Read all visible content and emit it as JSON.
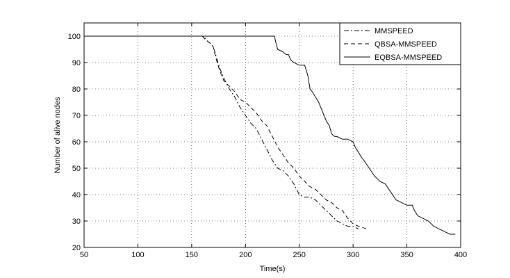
{
  "chart_data": {
    "type": "line",
    "title": "",
    "xlabel": "Time(s)",
    "ylabel": "Number of alive nodes",
    "xlim": [
      50,
      400
    ],
    "ylim": [
      20,
      105
    ],
    "xticks": [
      50,
      100,
      150,
      200,
      250,
      300,
      350,
      400
    ],
    "yticks": [
      20,
      30,
      40,
      50,
      60,
      70,
      80,
      90,
      100
    ],
    "grid": true,
    "legend_position": "top-right",
    "series": [
      {
        "name": "MMSPEED",
        "line_style": "dash-dot",
        "color": "#000000",
        "x": [
          50,
          161,
          163,
          165,
          168,
          170,
          173,
          176,
          180,
          185,
          190,
          195,
          200,
          205,
          210,
          215,
          220,
          225,
          230,
          235,
          240,
          245,
          250,
          255,
          260,
          265,
          270,
          275,
          280,
          285,
          290,
          295,
          300,
          305
        ],
        "y": [
          100,
          100,
          99,
          98,
          97,
          96,
          92,
          88,
          84,
          80,
          77,
          73,
          70,
          67,
          65,
          61,
          57,
          53,
          50,
          49,
          47,
          44,
          40,
          39,
          39,
          38,
          36,
          34,
          32,
          30,
          29,
          28,
          28,
          27
        ]
      },
      {
        "name": "QBSA-MMSPEED",
        "line_style": "dashed",
        "color": "#000000",
        "x": [
          50,
          160,
          162,
          165,
          168,
          170,
          173,
          176,
          180,
          185,
          190,
          195,
          200,
          205,
          210,
          215,
          220,
          225,
          230,
          235,
          240,
          245,
          250,
          255,
          260,
          265,
          270,
          275,
          280,
          285,
          290,
          295,
          300,
          305,
          313
        ],
        "y": [
          100,
          100,
          99,
          98,
          97,
          96,
          91,
          87,
          83,
          81,
          79,
          76,
          75,
          73,
          71,
          68,
          66,
          62,
          58,
          55,
          52,
          50,
          47,
          45,
          43,
          42,
          40,
          38,
          37,
          35,
          34,
          31,
          29,
          28,
          27
        ]
      },
      {
        "name": "EQBSA-MMSPEED",
        "line_style": "solid",
        "color": "#000000",
        "x": [
          50,
          227,
          228,
          230,
          235,
          238,
          240,
          242,
          245,
          250,
          255,
          258,
          260,
          262,
          265,
          268,
          270,
          272,
          275,
          278,
          280,
          283,
          285,
          290,
          295,
          300,
          302,
          305,
          308,
          310,
          315,
          320,
          325,
          330,
          335,
          340,
          345,
          350,
          355,
          357,
          360,
          365,
          370,
          375,
          380,
          385,
          390,
          395
        ],
        "y": [
          100,
          100,
          98,
          95,
          94,
          93,
          93,
          91,
          90,
          89,
          89,
          85,
          80,
          79,
          77,
          75,
          73,
          71,
          68,
          66,
          63,
          62,
          62,
          61,
          61,
          60,
          58,
          56,
          54,
          53,
          50,
          47,
          45,
          44,
          41,
          38,
          37,
          36,
          36,
          34,
          32,
          31,
          30,
          28,
          27,
          26,
          25,
          25
        ]
      }
    ]
  }
}
